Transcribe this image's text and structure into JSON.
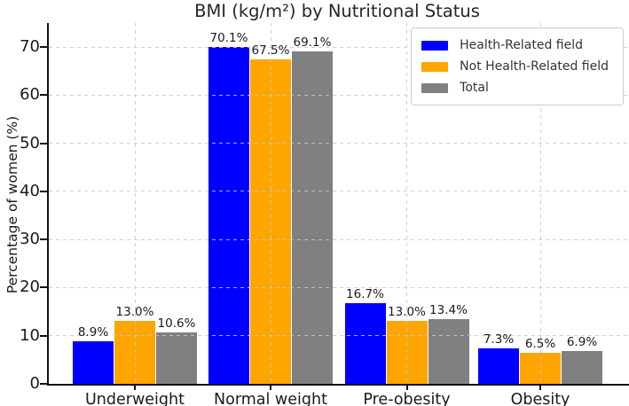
{
  "chart_data": {
    "type": "bar",
    "title": "BMI (kg/m²) by Nutritional Status",
    "xlabel": "",
    "ylabel": "Percentage of women (%)",
    "categories": [
      "Underweight",
      "Normal weight",
      "Pre-obesity",
      "Obesity"
    ],
    "series": [
      {
        "name": "Health-Related field",
        "color": "#0000ff",
        "values": [
          8.9,
          70.1,
          16.7,
          7.3
        ]
      },
      {
        "name": "Not Health-Related field",
        "color": "#ffa500",
        "values": [
          13.0,
          67.5,
          13.0,
          6.5
        ]
      },
      {
        "name": "Total",
        "color": "#808080",
        "values": [
          10.6,
          69.1,
          13.4,
          6.9
        ]
      }
    ],
    "bar_labels": [
      [
        "8.9%",
        "70.1%",
        "16.7%",
        "7.3%"
      ],
      [
        "13.0%",
        "67.5%",
        "13.0%",
        "6.5%"
      ],
      [
        "10.6%",
        "69.1%",
        "13.4%",
        "6.9%"
      ]
    ],
    "ylim": [
      0,
      75
    ],
    "yticks": [
      0,
      10,
      20,
      30,
      40,
      50,
      60,
      70
    ],
    "grid": true,
    "grid_style": "dashed",
    "legend_position": "upper right",
    "legend_entries": [
      "Health-Related field",
      "Not Health-Related field",
      "Total"
    ]
  }
}
